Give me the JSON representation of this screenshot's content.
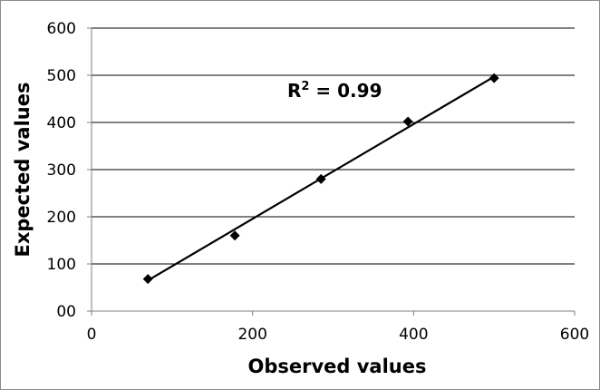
{
  "chart_data": {
    "type": "scatter",
    "xlabel": "Observed values",
    "ylabel": "Expected values",
    "xlim": [
      0,
      600
    ],
    "ylim": [
      0,
      600
    ],
    "x_ticks": [
      "0",
      "200",
      "400",
      "600"
    ],
    "y_ticks": [
      "00",
      "100",
      "200",
      "300",
      "400",
      "500",
      "600"
    ],
    "x_tick_values": [
      0,
      200,
      400,
      600
    ],
    "y_tick_values": [
      0,
      100,
      200,
      300,
      400,
      500,
      600
    ],
    "grid": "horizontal",
    "legend": "none",
    "series": [
      {
        "marker": "diamond",
        "color": "#000000",
        "points": [
          {
            "x": 70,
            "y": 68
          },
          {
            "x": 178,
            "y": 160
          },
          {
            "x": 285,
            "y": 280
          },
          {
            "x": 393,
            "y": 402
          },
          {
            "x": 500,
            "y": 494
          }
        ]
      }
    ],
    "trendline": {
      "type": "linear",
      "from": {
        "x": 70,
        "y": 65
      },
      "to": {
        "x": 500,
        "y": 497
      },
      "color": "#000000"
    },
    "annotation": {
      "base": "R",
      "superscript": "2",
      "rest": " = 0.99"
    }
  }
}
